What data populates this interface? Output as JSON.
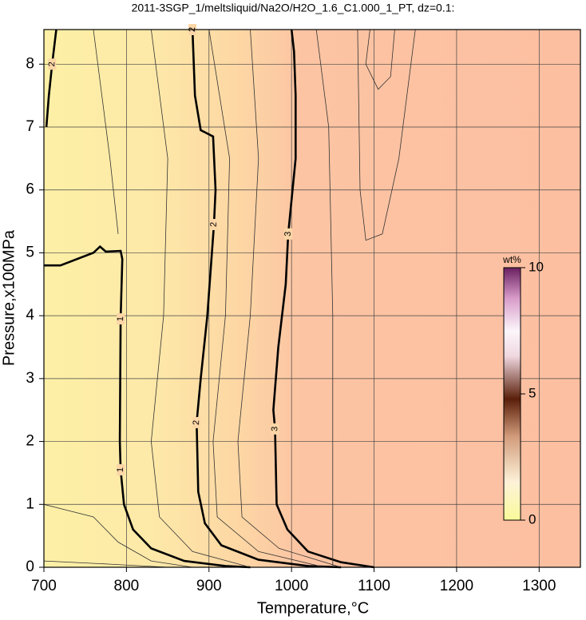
{
  "chart_data": {
    "type": "contour",
    "title": "2011-3SGP_1/meltsliquid/Na2O/H2O_1.6_C1.000_1_PT, dz=0.1:",
    "xlabel": "Temperature,°C",
    "ylabel": "Pressure,x100MPa",
    "xlim": [
      700,
      1350
    ],
    "ylim": [
      0,
      8.55
    ],
    "xticks": [
      700,
      800,
      900,
      1000,
      1100,
      1200,
      1300
    ],
    "yticks": [
      0,
      1,
      2,
      3,
      4,
      5,
      6,
      7,
      8
    ],
    "grid": true,
    "colorbar": {
      "label": "wt%",
      "lim": [
        0,
        10
      ],
      "ticks": [
        0,
        5,
        10
      ]
    },
    "series": [
      {
        "name": "1",
        "color": "#000000",
        "x": [
          700,
          720,
          760,
          768,
          775,
          793,
          795,
          793,
          792,
          793,
          797,
          808,
          830,
          870,
          920,
          950
        ],
        "values": [
          4.8,
          4.8,
          5.0,
          5.1,
          5.02,
          5.03,
          4.9,
          3.95,
          2.0,
          1.55,
          1.0,
          0.6,
          0.3,
          0.1,
          0.02,
          0
        ]
      },
      {
        "name": "2",
        "color": "#000000",
        "x": [
          703,
          706,
          710,
          715,
          null,
          880,
          883,
          890,
          905,
          908,
          906,
          898,
          890,
          885,
          887,
          895,
          915,
          960,
          1020,
          1060
        ],
        "values": [
          7.0,
          7.5,
          8.0,
          8.55,
          null,
          8.55,
          7.5,
          6.95,
          6.85,
          6.0,
          5.45,
          4.0,
          3.0,
          2.3,
          1.2,
          0.7,
          0.35,
          0.12,
          0.02,
          0
        ]
      },
      {
        "name": "3",
        "color": "#000000",
        "x": [
          1000,
          1003,
          1005,
          1005,
          996,
          993,
          984,
          978,
          980,
          982,
          995,
          1020,
          1060,
          1100
        ],
        "values": [
          8.55,
          8.2,
          7.5,
          6.5,
          5.3,
          4.5,
          3.5,
          2.5,
          2.2,
          1.0,
          0.6,
          0.25,
          0.08,
          0
        ]
      },
      {
        "color": "#333333",
        "x": [
          700,
          780,
          850
        ],
        "values": [
          0.1,
          0.05,
          0
        ]
      },
      {
        "color": "#333333",
        "x": [
          700,
          760,
          790,
          830,
          880
        ],
        "values": [
          1.0,
          0.8,
          0.4,
          0.1,
          0
        ]
      },
      {
        "color": "#333333",
        "x": [
          760,
          780,
          790
        ],
        "values": [
          8.55,
          6.5,
          5.3
        ]
      },
      {
        "color": "#333333",
        "x": [
          830,
          850,
          845,
          830,
          840,
          880,
          950
        ],
        "values": [
          8.55,
          6.5,
          4,
          2,
          0.8,
          0.25,
          0
        ]
      },
      {
        "color": "#333333",
        "x": [
          900,
          925,
          920,
          905,
          910,
          960,
          1040
        ],
        "values": [
          8.55,
          6.5,
          4,
          2,
          0.8,
          0.25,
          0
        ]
      },
      {
        "color": "#333333",
        "x": [
          950,
          960,
          950,
          935,
          940,
          985,
          1060
        ],
        "values": [
          8.55,
          6.5,
          4,
          2,
          0.8,
          0.3,
          0
        ]
      },
      {
        "color": "#333333",
        "x": [
          1030,
          1045,
          1050,
          1050,
          1050,
          1050
        ],
        "values": [
          8.55,
          7.0,
          4,
          2,
          1,
          0
        ]
      },
      {
        "color": "#333333",
        "x": [
          1080,
          1083,
          1090,
          1110,
          1130,
          1150
        ],
        "values": [
          8.55,
          6.0,
          5.2,
          5.3,
          6.5,
          8.55
        ]
      },
      {
        "color": "#333333",
        "x": [
          1095,
          1090,
          1105,
          1120,
          1125
        ],
        "values": [
          8.55,
          8.0,
          7.6,
          7.8,
          8.55
        ]
      }
    ]
  }
}
